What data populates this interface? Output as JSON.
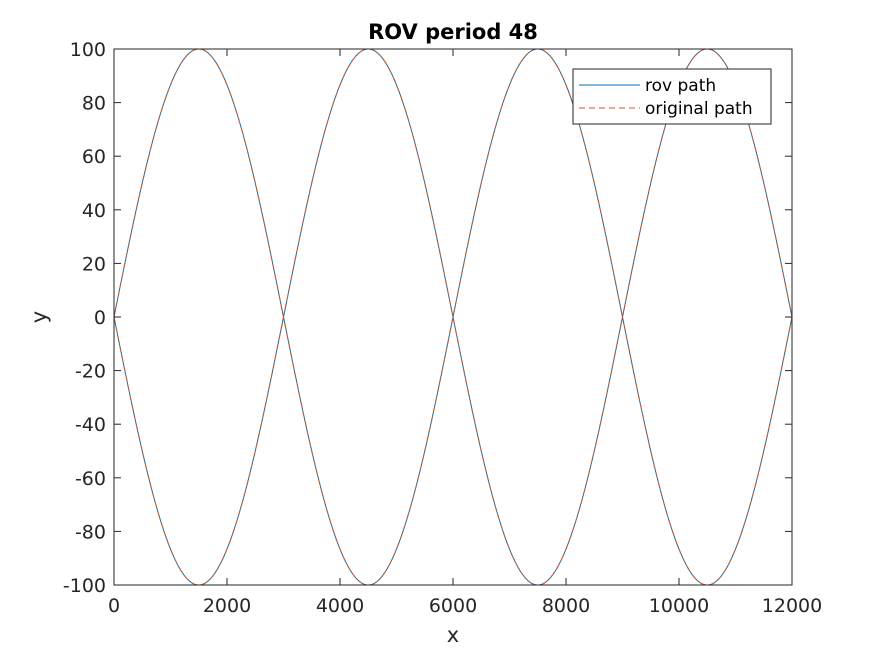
{
  "chart_data": {
    "type": "line",
    "title": "ROV period 48",
    "xlabel": "x",
    "ylabel": "y",
    "xlim": [
      0,
      12000
    ],
    "ylim": [
      -100,
      100
    ],
    "xticks": [
      "0",
      "2000",
      "4000",
      "6000",
      "8000",
      "10000",
      "12000"
    ],
    "yticks": [
      "100",
      "80",
      "60",
      "40",
      "20",
      "0",
      "-20",
      "-40",
      "-60",
      "-80",
      "-100"
    ],
    "grid": false,
    "legend_position": "top-right",
    "curve": "y = ±100·sin(π·x/3000)",
    "period_x": 6000,
    "amplitude": 100,
    "series": [
      {
        "name": "rov path",
        "style": "solid",
        "color": "#0072bd"
      },
      {
        "name": "original path",
        "style": "dashed",
        "color": "#d95319"
      }
    ]
  }
}
